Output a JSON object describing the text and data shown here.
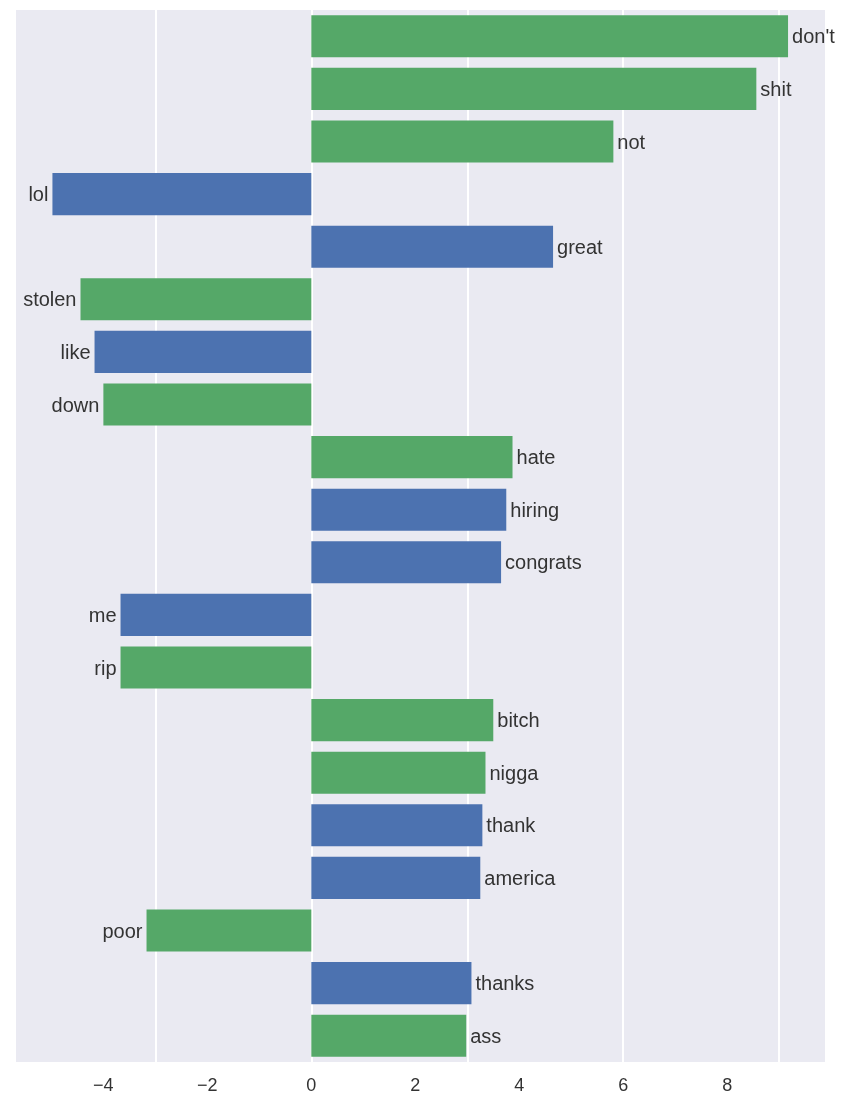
{
  "chart_data": {
    "type": "bar",
    "orientation": "horizontal",
    "categories": [
      "don't",
      "shit",
      "not",
      "lol",
      "great",
      "stolen",
      "like",
      "down",
      "hate",
      "hiring",
      "congrats",
      "me",
      "rip",
      "bitch",
      "nigga",
      "thank",
      "america",
      "poor",
      "thanks",
      "ass"
    ],
    "values": [
      9.17,
      8.56,
      5.81,
      -4.98,
      4.65,
      -4.44,
      -4.17,
      -4.0,
      3.87,
      3.75,
      3.65,
      -3.67,
      -3.67,
      3.5,
      3.35,
      3.29,
      3.25,
      -3.17,
      3.08,
      2.98
    ],
    "colors": [
      "#55a868",
      "#55a868",
      "#55a868",
      "#4c72b0",
      "#4c72b0",
      "#55a868",
      "#4c72b0",
      "#55a868",
      "#55a868",
      "#4c72b0",
      "#4c72b0",
      "#4c72b0",
      "#55a868",
      "#55a868",
      "#55a868",
      "#4c72b0",
      "#4c72b0",
      "#55a868",
      "#4c72b0",
      "#55a868"
    ],
    "xlim": [
      -5.7,
      9.9
    ],
    "xticks": [
      -4,
      -2,
      0,
      2,
      4,
      6,
      8
    ],
    "grid": "x",
    "tick_labels": "x"
  }
}
